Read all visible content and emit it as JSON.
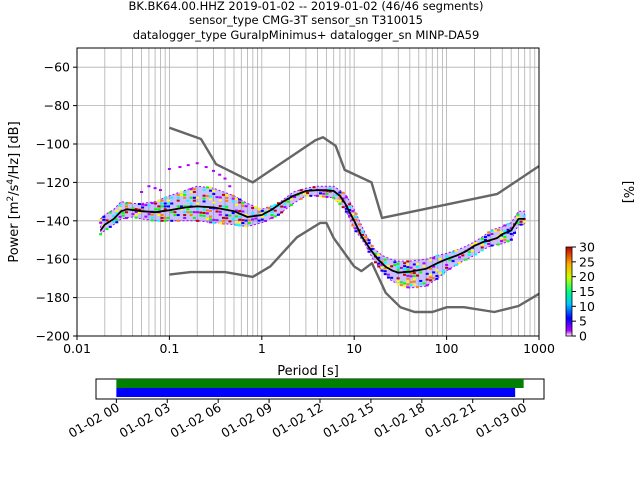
{
  "header": {
    "line1": "BK.BK64.00.HHZ   2019-01-02 -- 2019-01-02  (46/46 segments)",
    "line2": "sensor_type CMG-3T sensor_sn T310015",
    "line3": "datalogger_type GuralpMinimus+ datalogger_sn MINP-DA59"
  },
  "colors": {
    "grid": "#b0b0b0",
    "noise_model": "#666666",
    "mean_line": "#000000",
    "coverage_top": "#008000",
    "coverage_bottom": "#0000ff",
    "colormap": [
      "#ffffff",
      "#b000ff",
      "#0000ff",
      "#00ffff",
      "#00ff00",
      "#ffff00",
      "#ff7f00",
      "#c00000"
    ]
  },
  "chart_data": [
    {
      "type": "heatmap",
      "title": "",
      "xlabel": "Period [s]",
      "ylabel": "Power [m²/s⁴/Hz] [dB]",
      "ylabel_parts": {
        "a": "Power [m",
        "b": "2",
        "c": "/s",
        "d": "4",
        "e": "/Hz] [dB]"
      },
      "x_scale": "log",
      "xlim": [
        0.01,
        1000
      ],
      "ylim": [
        -200,
        -50
      ],
      "x_ticks": [
        {
          "v": 0.01,
          "label": "0.01"
        },
        {
          "v": 0.1,
          "label": "0.1"
        },
        {
          "v": 1,
          "label": "1"
        },
        {
          "v": 10,
          "label": "10"
        },
        {
          "v": 100,
          "label": "100"
        },
        {
          "v": 1000,
          "label": "1000"
        }
      ],
      "y_ticks": [
        {
          "v": -60,
          "label": "−60"
        },
        {
          "v": -80,
          "label": "−80"
        },
        {
          "v": -100,
          "label": "−100"
        },
        {
          "v": -120,
          "label": "−120"
        },
        {
          "v": -140,
          "label": "−140"
        },
        {
          "v": -160,
          "label": "−160"
        },
        {
          "v": -180,
          "label": "−180"
        },
        {
          "v": -200,
          "label": "−200"
        }
      ],
      "grid": true,
      "colorbar": {
        "label": "[%]",
        "range": [
          0,
          30
        ],
        "ticks": [
          {
            "v": 0,
            "label": "0"
          },
          {
            "v": 5,
            "label": "5"
          },
          {
            "v": 10,
            "label": "10"
          },
          {
            "v": 15,
            "label": "15"
          },
          {
            "v": 20,
            "label": "20"
          },
          {
            "v": 25,
            "label": "25"
          },
          {
            "v": 30,
            "label": "30"
          }
        ]
      },
      "mean_psd": {
        "x": [
          0.018,
          0.02,
          0.025,
          0.03,
          0.035,
          0.05,
          0.07,
          0.1,
          0.15,
          0.2,
          0.3,
          0.5,
          0.7,
          1.0,
          1.3,
          1.7,
          2.2,
          3,
          4,
          5,
          6,
          7,
          8,
          9,
          10,
          12,
          15,
          18,
          22,
          26,
          30,
          40,
          60,
          80,
          100,
          130,
          160,
          200,
          250,
          300,
          350,
          400,
          500,
          600,
          700
        ],
        "y": [
          -145,
          -142,
          -139,
          -135,
          -134,
          -135,
          -135.5,
          -134.5,
          -133,
          -132.5,
          -133,
          -135,
          -138,
          -137,
          -134,
          -130,
          -127,
          -124.5,
          -124,
          -124,
          -124.5,
          -127,
          -131,
          -136,
          -140,
          -148,
          -155,
          -160,
          -164,
          -166,
          -167,
          -166.5,
          -165,
          -162,
          -160,
          -158,
          -156,
          -153,
          -151,
          -150,
          -149,
          -147,
          -145,
          -139,
          -139
        ]
      },
      "noise_model_high": {
        "x": [
          0.1,
          0.22,
          0.32,
          0.8,
          3.8,
          4.6,
          6.3,
          7.9,
          15.4,
          20,
          354.8,
          1000
        ],
        "y": [
          -91.5,
          -97.4,
          -110.5,
          -120,
          -98,
          -96.5,
          -101,
          -113.5,
          -120,
          -138.5,
          -126,
          -111.5
        ]
      },
      "noise_model_low": {
        "x": [
          0.1,
          0.17,
          0.4,
          0.8,
          1.24,
          2.4,
          4.3,
          5.0,
          6.0,
          10.0,
          12.0,
          15.6,
          21.9,
          31.6,
          45.0,
          70.0,
          101.0,
          154.0,
          328.0,
          600.0,
          1000.0
        ],
        "y": [
          -168,
          -166.7,
          -166.7,
          -169.2,
          -163.7,
          -148.6,
          -141.1,
          -141.1,
          -149,
          -163.8,
          -166.2,
          -162.1,
          -177.5,
          -185,
          -187.5,
          -187.5,
          -185,
          -185,
          -187.5,
          -184.4,
          -178
        ]
      },
      "density_shade": {
        "x": [
          0.018,
          0.02,
          0.025,
          0.03,
          0.04,
          0.05,
          0.07,
          0.1,
          0.15,
          0.2,
          0.3,
          0.5,
          0.7,
          1.0,
          1.5,
          2.2,
          3,
          4,
          6,
          8,
          10,
          13,
          16,
          20,
          25,
          30,
          40,
          60,
          80,
          100,
          150,
          200,
          250,
          300,
          400,
          500,
          600,
          700
        ],
        "y_top": [
          -139,
          -137,
          -134,
          -130,
          -131,
          -131,
          -130,
          -127,
          -124,
          -122,
          -123,
          -127,
          -131,
          -134,
          -131,
          -125,
          -123,
          -122,
          -122,
          -126,
          -134,
          -146,
          -154,
          -158,
          -160,
          -161,
          -161,
          -160,
          -158,
          -157,
          -154,
          -151,
          -148,
          -145,
          -143,
          -141,
          -135,
          -135
        ],
        "y_bottom": [
          -147,
          -145,
          -142,
          -139,
          -138,
          -139,
          -140,
          -140,
          -140,
          -140,
          -141,
          -142,
          -143,
          -141,
          -137,
          -131,
          -127,
          -127,
          -128,
          -134,
          -144,
          -152,
          -160,
          -166,
          -171,
          -173,
          -175,
          -174,
          -170,
          -166,
          -161,
          -158,
          -155,
          -153,
          -152,
          -150,
          -142,
          -142
        ]
      },
      "scatter_outliers": {
        "x": [
          0.1,
          0.13,
          0.16,
          0.2,
          0.25,
          0.3,
          0.35,
          0.4,
          0.45,
          0.05,
          0.06,
          0.07,
          0.08
        ],
        "y": [
          -113,
          -112,
          -111,
          -110,
          -112,
          -114,
          -116,
          -118,
          -122,
          -125,
          -122,
          -123,
          -124
        ]
      }
    },
    {
      "type": "timeline",
      "title": "",
      "x_ticks": [
        {
          "label": "01-02 00"
        },
        {
          "label": "01-02 03"
        },
        {
          "label": "01-02 06"
        },
        {
          "label": "01-02 09"
        },
        {
          "label": "01-02 12"
        },
        {
          "label": "01-02 15"
        },
        {
          "label": "01-02 18"
        },
        {
          "label": "01-02 21"
        },
        {
          "label": "01-03 00"
        }
      ],
      "x_hours": [
        0,
        3,
        6,
        9,
        12,
        15,
        18,
        21,
        24
      ],
      "range_hours": [
        -1.2,
        25.2
      ],
      "bars": [
        {
          "series": "coverage_top",
          "start_hour": 0,
          "end_hour": 24
        },
        {
          "series": "coverage_bottom",
          "start_hour": 0,
          "end_hour": 23.5
        }
      ]
    }
  ]
}
